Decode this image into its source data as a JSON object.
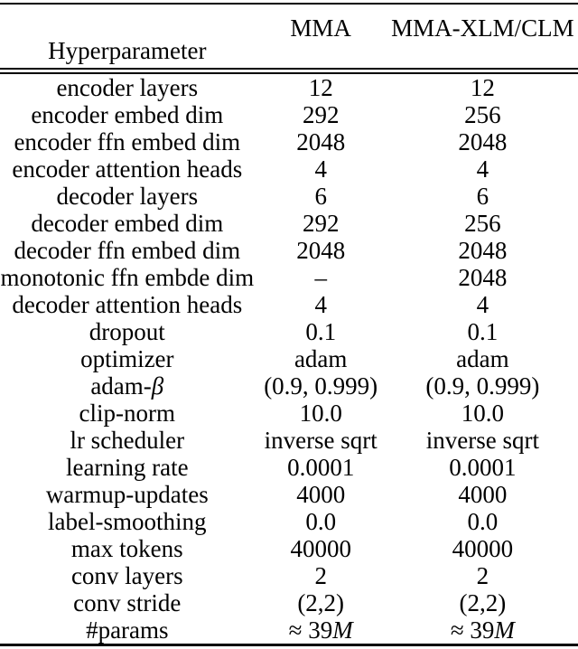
{
  "table": {
    "header": {
      "hyperparameter": "Hyperparameter",
      "col_mma": "MMA",
      "col_xlm": "MMA-XLM/CLM"
    },
    "rows": [
      {
        "label": "encoder layers",
        "mma": "12",
        "xlm": "12"
      },
      {
        "label": "encoder embed dim",
        "mma": "292",
        "xlm": "256"
      },
      {
        "label": "encoder ffn embed dim",
        "mma": "2048",
        "xlm": "2048"
      },
      {
        "label": "encoder attention heads",
        "mma": "4",
        "xlm": "4"
      },
      {
        "label": "decoder layers",
        "mma": "6",
        "xlm": "6"
      },
      {
        "label": "decoder embed dim",
        "mma": "292",
        "xlm": "256"
      },
      {
        "label": "decoder ffn embed dim",
        "mma": "2048",
        "xlm": "2048"
      },
      {
        "label": "monotonic ffn embde dim",
        "mma": "–",
        "xlm": "2048"
      },
      {
        "label": "decoder attention heads",
        "mma": "4",
        "xlm": "4"
      },
      {
        "label": "dropout",
        "mma": "0.1",
        "xlm": "0.1"
      },
      {
        "label": "optimizer",
        "mma": "adam",
        "xlm": "adam"
      },
      {
        "label_prefix": "adam-",
        "label_beta": "β",
        "mma": "(0.9, 0.999)",
        "xlm": "(0.9, 0.999)"
      },
      {
        "label": "clip-norm",
        "mma": "10.0",
        "xlm": "10.0"
      },
      {
        "label": "lr scheduler",
        "mma": "inverse sqrt",
        "xlm": "inverse sqrt"
      },
      {
        "label": "learning rate",
        "mma": "0.0001",
        "xlm": "0.0001"
      },
      {
        "label": "warmup-updates",
        "mma": "4000",
        "xlm": "4000"
      },
      {
        "label": "label-smoothing",
        "mma": "0.0",
        "xlm": "0.0"
      },
      {
        "label": "max tokens",
        "mma": "40000",
        "xlm": "40000"
      },
      {
        "label": "conv layers",
        "mma": "2",
        "xlm": "2"
      },
      {
        "label": "conv stride",
        "mma": "(2,2)",
        "xlm": "(2,2)"
      },
      {
        "label": "#params",
        "value_prefix": "≈ 39",
        "value_m": "M"
      }
    ]
  }
}
